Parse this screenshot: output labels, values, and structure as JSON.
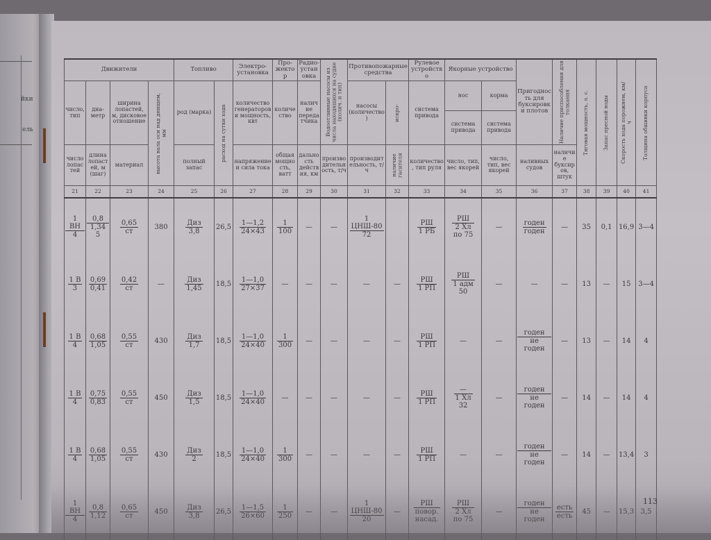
{
  "left_page": {
    "fragments": [
      "йки",
      "ель"
    ]
  },
  "header": {
    "groups": {
      "propulsion": "Движители",
      "fuel": "Топливо",
      "electrical": "Электро-установка",
      "searchlight": "Про-жектор",
      "radio": "Радио-установка",
      "bilge_pumps": "Водоотливные насосы из числа находящихся на судне (колич. и тип)",
      "firefighting": "Противопожарные средства",
      "steering": "Рулевое устройство",
      "anchor": "Якорные устройство",
      "towing_rafts": "Пригодность для буксировки плотов",
      "pushing": "Наличие приспособления для толкания",
      "traction_power": "Тяговая мощность, л. с.",
      "fresh_water": "Запас пресной воды",
      "speed": "Скорость хода порожнем, км/ч",
      "hull_thickness": "Толщина обшивки корпуса"
    },
    "sub": {
      "bow": "нос",
      "stern": "корма"
    },
    "upper": {
      "c21": "число, тип",
      "c22": "диа-метр",
      "c23": "ширина лопастей, м, дисковое отношение",
      "c24": "высота вала оси над днищем, мм",
      "c25": "род (марка)",
      "c26": "расход на сутки хода",
      "c27": "количество генераторов и мощность, квт",
      "c28": "количество",
      "c29": "наличие передатчика",
      "c31": "насосы (количество)",
      "c32": "искро-",
      "c33": "система привода",
      "c34": "система привода",
      "c35": "система привода"
    },
    "lower": {
      "c21": "число лопастей",
      "c22": "длина лопастей, м (шаг)",
      "c23": "материал",
      "c25": "полный запас",
      "c27": "напряжение и сила тока",
      "c28": "общая мощность, ватт",
      "c29": "дальность действия, км",
      "c30": "производительность, т/ч",
      "c31": "производительность, т/ч",
      "c32": "наличие гасителя",
      "c33": "количество, тип руля",
      "c34": "число, тип, вес якорей",
      "c35": "число, тип, вес якорей",
      "c36": "наливных судов",
      "c37": "наличие буксиров, штук"
    },
    "numbers": [
      "21",
      "22",
      "23",
      "24",
      "25",
      "26",
      "27",
      "28",
      "29",
      "30",
      "31",
      "32",
      "33",
      "34",
      "35",
      "36",
      "37",
      "38",
      "39",
      "40",
      "41"
    ]
  },
  "rows": [
    [
      {
        "n": [
          "1 ВН"
        ],
        "d": [
          "4"
        ]
      },
      {
        "n": [
          "0,8"
        ],
        "d": [
          "1,345"
        ]
      },
      {
        "n": [
          "0,65"
        ],
        "d": [
          "ст"
        ]
      },
      "380",
      {
        "n": [
          "Диз"
        ],
        "d": [
          "3,8"
        ]
      },
      "26,5",
      {
        "n": [
          "1—1,2"
        ],
        "d": [
          "24×43"
        ]
      },
      {
        "n": [
          "1"
        ],
        "d": [
          "100"
        ]
      },
      "—",
      "—",
      {
        "n": [
          "1",
          "ЦНШ-80"
        ],
        "d": [
          "72"
        ]
      },
      "",
      {
        "n": [
          "РШ"
        ],
        "d": [
          "1 РБ"
        ]
      },
      {
        "n": [
          "РШ"
        ],
        "d": [
          "2 Хл",
          "по 75"
        ]
      },
      "—",
      {
        "n": [
          "годен"
        ],
        "d": [
          "годен"
        ]
      },
      "—",
      "35",
      "0,1",
      "16,9",
      "3—4"
    ],
    [
      {
        "n": [
          "1 В"
        ],
        "d": [
          "3"
        ]
      },
      {
        "n": [
          "0,69"
        ],
        "d": [
          "0,41"
        ]
      },
      {
        "n": [
          "0,42"
        ],
        "d": [
          "ст"
        ]
      },
      "—",
      {
        "n": [
          "Диз"
        ],
        "d": [
          "1,45"
        ]
      },
      "18,5",
      {
        "n": [
          "1—1,0"
        ],
        "d": [
          "27×37"
        ]
      },
      "—",
      "—",
      "—",
      "—",
      "—",
      {
        "n": [
          "РШ"
        ],
        "d": [
          "1 РП"
        ]
      },
      {
        "n": [
          "РШ"
        ],
        "d": [
          "1 адм",
          "50"
        ]
      },
      "—",
      "—",
      "—",
      "13",
      "—",
      "15",
      "3—4"
    ],
    [
      {
        "n": [
          "1 В"
        ],
        "d": [
          "4"
        ]
      },
      {
        "n": [
          "0,68"
        ],
        "d": [
          "1,05"
        ]
      },
      {
        "n": [
          "0,55"
        ],
        "d": [
          "ст"
        ]
      },
      "430",
      {
        "n": [
          "Диз"
        ],
        "d": [
          "1,7"
        ]
      },
      "18,5",
      {
        "n": [
          "1—1,0"
        ],
        "d": [
          "24×40"
        ]
      },
      {
        "n": [
          "1"
        ],
        "d": [
          "300"
        ]
      },
      "—",
      "—",
      "—",
      "—",
      {
        "n": [
          "РШ"
        ],
        "d": [
          "1 РП"
        ]
      },
      "—",
      "—",
      {
        "n": [
          "годен"
        ],
        "d": [
          "не годен"
        ]
      },
      "—",
      "13",
      "—",
      "14",
      "4"
    ],
    [
      {
        "n": [
          "1 В"
        ],
        "d": [
          "4"
        ]
      },
      {
        "n": [
          "0,75"
        ],
        "d": [
          "0,83"
        ]
      },
      {
        "n": [
          "0,55"
        ],
        "d": [
          "ст"
        ]
      },
      "450",
      {
        "n": [
          "Диз"
        ],
        "d": [
          "1,5"
        ]
      },
      "18,5",
      {
        "n": [
          "1—1,0"
        ],
        "d": [
          "24×40"
        ]
      },
      "—",
      "—",
      "—",
      "—",
      "—",
      {
        "n": [
          "РШ"
        ],
        "d": [
          "1 РП"
        ]
      },
      {
        "n": [
          "—"
        ],
        "d": [
          "1 Хл",
          "32"
        ]
      },
      "—",
      {
        "n": [
          "годен"
        ],
        "d": [
          "не годен"
        ]
      },
      "—",
      "14",
      "—",
      "14",
      "4"
    ],
    [
      {
        "n": [
          "1 В"
        ],
        "d": [
          "4"
        ]
      },
      {
        "n": [
          "0,68"
        ],
        "d": [
          "1,05"
        ]
      },
      {
        "n": [
          "0,55"
        ],
        "d": [
          "ст"
        ]
      },
      "430",
      {
        "n": [
          "Диз"
        ],
        "d": [
          "2"
        ]
      },
      "18,5",
      {
        "n": [
          "1—1,0"
        ],
        "d": [
          "24×40"
        ]
      },
      {
        "n": [
          "1"
        ],
        "d": [
          "300"
        ]
      },
      "—",
      "—",
      "—",
      "—",
      {
        "n": [
          "РШ"
        ],
        "d": [
          "1 РП"
        ]
      },
      "—",
      "—",
      {
        "n": [
          "годен"
        ],
        "d": [
          "не годен"
        ]
      },
      "—",
      "14",
      "—",
      "13,4",
      "3"
    ],
    [
      {
        "n": [
          "1 ВН"
        ],
        "d": [
          "4"
        ]
      },
      {
        "n": [
          "0,8"
        ],
        "d": [
          "1,12"
        ]
      },
      {
        "n": [
          "0,65"
        ],
        "d": [
          "ст"
        ]
      },
      "450",
      {
        "n": [
          "Диз"
        ],
        "d": [
          "3,8"
        ]
      },
      "26,5",
      {
        "n": [
          "1—1,5"
        ],
        "d": [
          "26×60"
        ]
      },
      {
        "n": [
          "1"
        ],
        "d": [
          "250"
        ]
      },
      "—",
      "—",
      {
        "n": [
          "1",
          "ЦНШ-80"
        ],
        "d": [
          "20"
        ]
      },
      "—",
      {
        "n": [
          "РШ"
        ],
        "d": [
          "повор.",
          "насад."
        ]
      },
      {
        "n": [
          "РШ"
        ],
        "d": [
          "2 Хл",
          "по 75"
        ]
      },
      "—",
      {
        "n": [
          "годен"
        ],
        "d": [
          "не годен"
        ]
      },
      {
        "n": [
          "есть"
        ],
        "d": [
          "есть"
        ]
      },
      "45",
      "—",
      "15,3",
      "3,5"
    ]
  ],
  "page_number": "113"
}
